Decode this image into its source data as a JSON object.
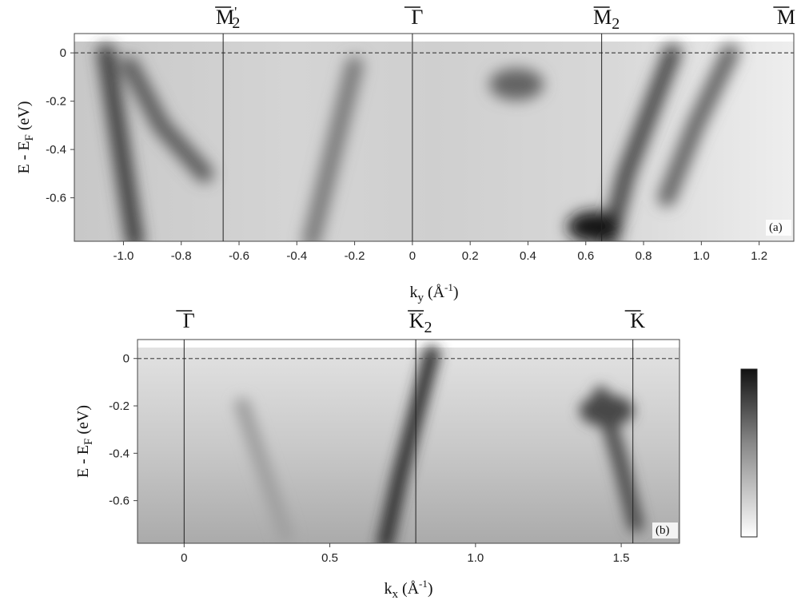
{
  "chart_data": [
    {
      "type": "heatmap",
      "panel_label": "(a)",
      "xlabel": "k",
      "xlabel_sub": "y",
      "xlabel_units": " (Å",
      "xlabel_units_sup": "-1",
      "xlabel_units_end": ")",
      "ylabel": "E - E",
      "ylabel_sub": "F",
      "ylabel_units": " (eV)",
      "xlim": [
        -1.17,
        1.32
      ],
      "ylim": [
        -0.78,
        0.08
      ],
      "x_ticks": [
        -1.0,
        -0.8,
        -0.6,
        -0.4,
        -0.2,
        0,
        0.2,
        0.4,
        0.6,
        0.8,
        1.0,
        1.2
      ],
      "x_tick_labels": [
        "-1.0",
        "-0.8",
        "-0.6",
        "-0.4",
        "-0.2",
        "0",
        "0.2",
        "0.4",
        "0.6",
        "0.8",
        "1.0",
        "1.2"
      ],
      "y_ticks": [
        0,
        -0.2,
        -0.4,
        -0.6
      ],
      "y_tick_labels": [
        "0",
        "-0.2",
        "-0.4",
        "-0.6"
      ],
      "fermi_level": 0,
      "symmetry_points": [
        {
          "label": "M",
          "sup": "'",
          "sub": "2",
          "bar": true,
          "x": -0.655
        },
        {
          "label": "Γ",
          "bar": true,
          "x": 0
        },
        {
          "label": "M",
          "sub": "2",
          "bar": true,
          "x": 0.655
        }
      ],
      "edge_symmetry_point": {
        "label": "M",
        "bar": true,
        "x": 1.31
      },
      "bands": [
        {
          "points": [
            [
              -1.06,
              0
            ],
            [
              -0.96,
              -0.78
            ]
          ],
          "intensity": 0.75
        },
        {
          "points": [
            [
              -0.98,
              -0.05
            ],
            [
              -0.87,
              -0.3
            ],
            [
              -0.72,
              -0.5
            ]
          ],
          "intensity": 0.6
        },
        {
          "points": [
            [
              -0.2,
              -0.05
            ],
            [
              -0.35,
              -0.78
            ]
          ],
          "intensity": 0.45
        },
        {
          "points": [
            [
              0.9,
              0
            ],
            [
              0.74,
              -0.5
            ],
            [
              0.68,
              -0.78
            ]
          ],
          "intensity": 0.7
        },
        {
          "points": [
            [
              1.1,
              0
            ],
            [
              0.98,
              -0.3
            ],
            [
              0.88,
              -0.6
            ]
          ],
          "intensity": 0.55
        }
      ],
      "spots": [
        {
          "x": 0.36,
          "y": -0.13,
          "intensity": 0.55
        },
        {
          "x": 0.63,
          "y": -0.72,
          "intensity": 0.95
        }
      ]
    },
    {
      "type": "heatmap",
      "panel_label": "(b)",
      "xlabel": "k",
      "xlabel_sub": "x",
      "xlabel_units": " (Å",
      "xlabel_units_sup": "-1",
      "xlabel_units_end": ")",
      "ylabel": "E - E",
      "ylabel_sub": "F",
      "ylabel_units": " (eV)",
      "xlim": [
        -0.16,
        1.7
      ],
      "ylim": [
        -0.78,
        0.08
      ],
      "x_ticks": [
        0,
        0.5,
        1.0,
        1.5
      ],
      "x_tick_labels": [
        "0",
        "0.5",
        "1.0",
        "1.5"
      ],
      "y_ticks": [
        0,
        -0.2,
        -0.4,
        -0.6
      ],
      "y_tick_labels": [
        "0",
        "-0.2",
        "-0.4",
        "-0.6"
      ],
      "fermi_level": 0,
      "symmetry_points": [
        {
          "label": "Γ",
          "bar": true,
          "x": 0
        },
        {
          "label": "K",
          "sub": "2",
          "bar": true,
          "x": 0.795
        },
        {
          "label": "K",
          "bar": true,
          "x": 1.54
        }
      ],
      "bands": [
        {
          "points": [
            [
              0.85,
              0.02
            ],
            [
              0.74,
              -0.5
            ],
            [
              0.69,
              -0.78
            ]
          ],
          "intensity": 0.8
        },
        {
          "points": [
            [
              1.43,
              -0.15
            ],
            [
              1.5,
              -0.45
            ],
            [
              1.55,
              -0.7
            ]
          ],
          "intensity": 0.65
        },
        {
          "points": [
            [
              0.2,
              -0.2
            ],
            [
              0.35,
              -0.75
            ]
          ],
          "intensity": 0.25
        }
      ],
      "spots": [
        {
          "x": 1.45,
          "y": -0.22,
          "intensity": 0.7
        }
      ]
    }
  ],
  "colorbar": {
    "from_color": "#ffffff",
    "to_color": "#111111"
  }
}
